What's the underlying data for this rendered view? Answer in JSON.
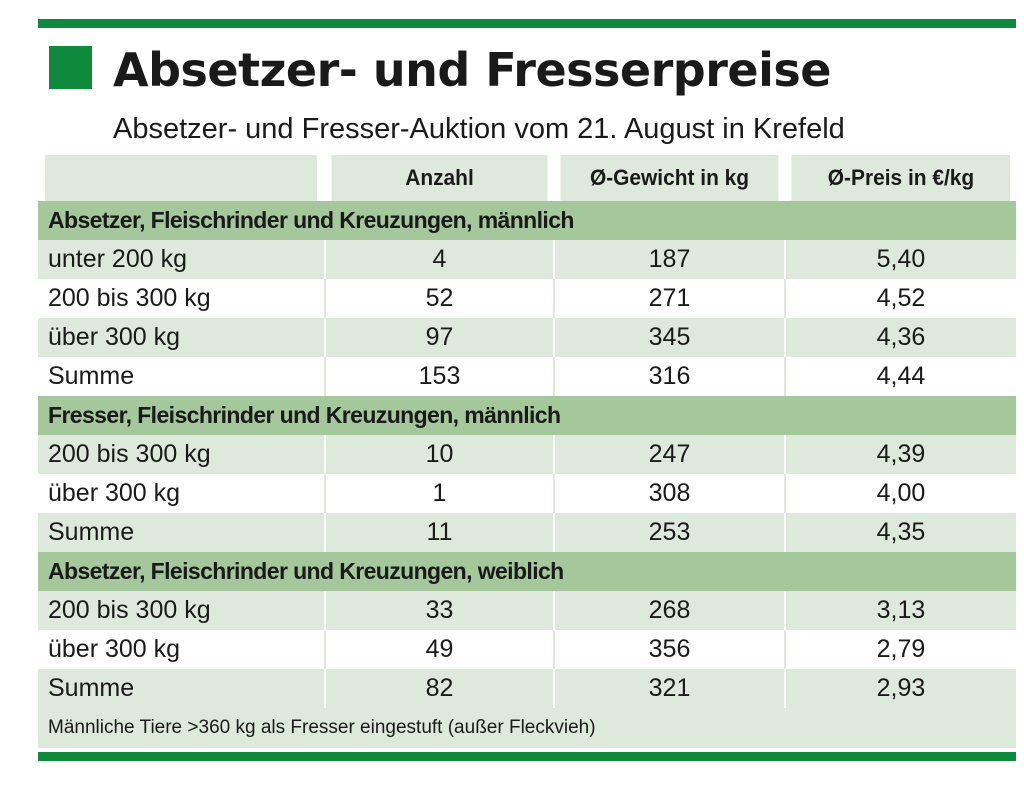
{
  "header": {
    "title": "Absetzer- und Fresserpreise",
    "subtitle": "Absetzer- und Fresser-Auktion vom 21. August in Krefeld"
  },
  "table": {
    "columns": [
      "",
      "Anzahl",
      "Ø-Gewicht in kg",
      "Ø-Preis in €/kg"
    ],
    "sections": [
      {
        "title": "Absetzer, Fleischrinder und Kreuzungen, männlich",
        "rows": [
          [
            "unter 200 kg",
            "4",
            "187",
            "5,40"
          ],
          [
            "200 bis 300 kg",
            "52",
            "271",
            "4,52"
          ],
          [
            "über 300 kg",
            "97",
            "345",
            "4,36"
          ],
          [
            "Summe",
            "153",
            "316",
            "4,44"
          ]
        ]
      },
      {
        "title": "Fresser, Fleischrinder und Kreuzungen, männlich",
        "rows": [
          [
            "200 bis 300 kg",
            "10",
            "247",
            "4,39"
          ],
          [
            "über 300 kg",
            "1",
            "308",
            "4,00"
          ],
          [
            "Summe",
            "11",
            "253",
            "4,35"
          ]
        ]
      },
      {
        "title": "Absetzer, Fleischrinder und Kreuzungen, weiblich",
        "rows": [
          [
            "200 bis 300 kg",
            "33",
            "268",
            "3,13"
          ],
          [
            "über 300 kg",
            "49",
            "356",
            "2,79"
          ],
          [
            "Summe",
            "82",
            "321",
            "2,93"
          ]
        ]
      }
    ],
    "footnote": "Männliche Tiere >360 kg als Fresser eingestuft (außer Fleckvieh)"
  },
  "colors": {
    "accent": "#0f8a3c",
    "section_band": "#a4c79b",
    "row_tint": "#dde9da"
  }
}
